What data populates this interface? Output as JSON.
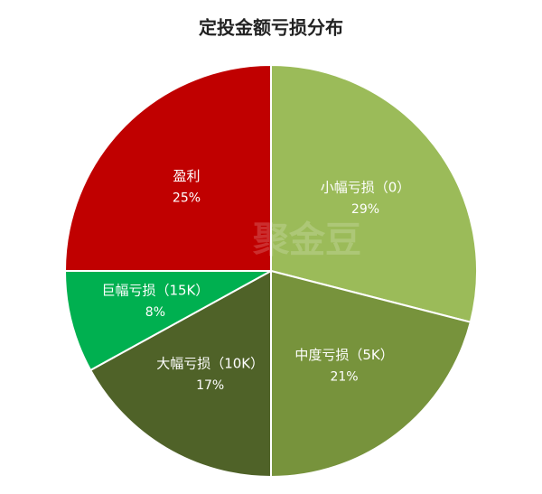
{
  "chart_data": {
    "type": "pie",
    "title": "定投金额亏损分布",
    "watermark": "聚金豆",
    "categories": [
      "小幅亏损（0）",
      "中度亏损（5K）",
      "大幅亏损（10K）",
      "巨幅亏损（15K）",
      "盈利"
    ],
    "values": [
      29,
      21,
      17,
      8,
      25
    ],
    "value_labels": [
      "29%",
      "21%",
      "17%",
      "8%",
      "25%"
    ],
    "colors": [
      "#9bbb59",
      "#77933c",
      "#4f6228",
      "#00b050",
      "#c00000"
    ]
  }
}
